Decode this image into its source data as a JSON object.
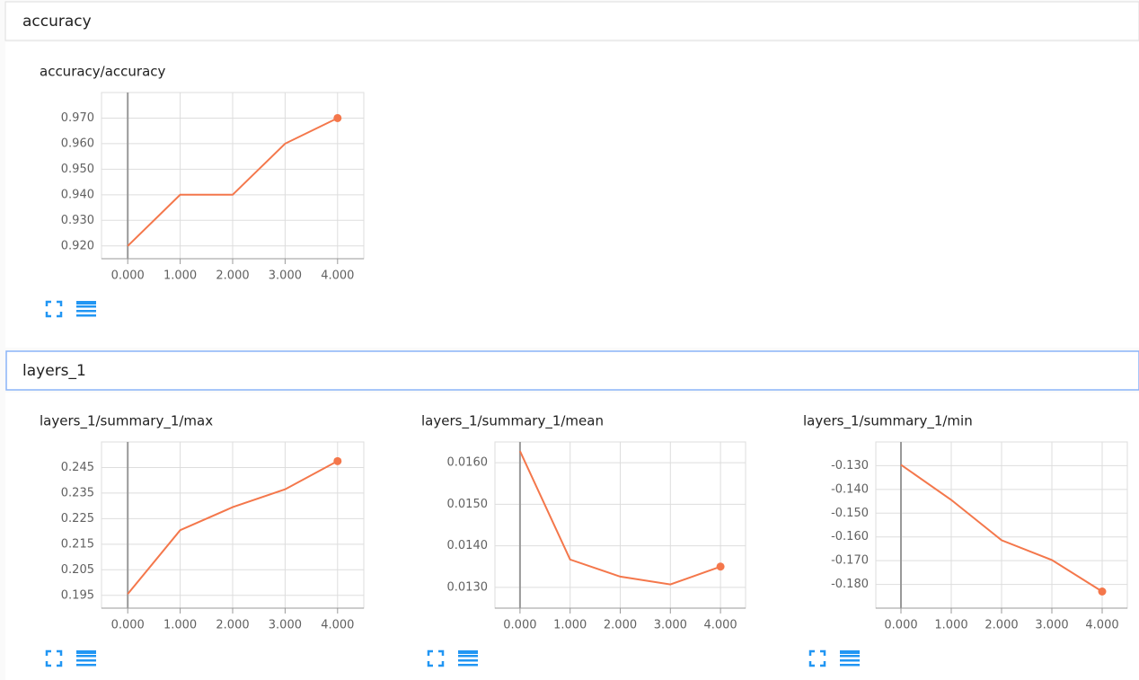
{
  "sections": [
    "accuracy",
    "layers_1"
  ],
  "chart_data": [
    {
      "type": "line",
      "title": "accuracy/accuracy",
      "x": [
        0,
        1,
        2,
        3,
        4
      ],
      "values": [
        0.92,
        0.94,
        0.94,
        0.96,
        0.97
      ],
      "color": "#f4774b",
      "xlim": [
        -0.5,
        4.5
      ],
      "ylim": [
        0.915,
        0.98
      ],
      "xticks": [
        {
          "value": 0,
          "label": "0.000"
        },
        {
          "value": 1,
          "label": "1.000"
        },
        {
          "value": 2,
          "label": "2.000"
        },
        {
          "value": 3,
          "label": "3.000"
        },
        {
          "value": 4,
          "label": "4.000"
        }
      ],
      "yticks": [
        {
          "value": 0.92,
          "label": "0.920"
        },
        {
          "value": 0.93,
          "label": "0.930"
        },
        {
          "value": 0.94,
          "label": "0.940"
        },
        {
          "value": 0.95,
          "label": "0.950"
        },
        {
          "value": 0.96,
          "label": "0.960"
        },
        {
          "value": 0.97,
          "label": "0.970"
        }
      ],
      "grid": true
    },
    {
      "type": "line",
      "title": "layers_1/summary_1/max",
      "x": [
        0,
        1,
        2,
        3,
        4
      ],
      "values": [
        0.1955,
        0.2205,
        0.2295,
        0.2365,
        0.2475
      ],
      "color": "#f4774b",
      "xlim": [
        -0.5,
        4.5
      ],
      "ylim": [
        0.19,
        0.255
      ],
      "xticks": [
        {
          "value": 0,
          "label": "0.000"
        },
        {
          "value": 1,
          "label": "1.000"
        },
        {
          "value": 2,
          "label": "2.000"
        },
        {
          "value": 3,
          "label": "3.000"
        },
        {
          "value": 4,
          "label": "4.000"
        }
      ],
      "yticks": [
        0.195,
        0.205,
        0.215,
        0.225,
        0.235,
        0.245
      ],
      "grid": true
    },
    {
      "type": "line",
      "title": "layers_1/summary_1/mean",
      "x": [
        0,
        1,
        2,
        3,
        4
      ],
      "values": [
        0.01628,
        0.01367,
        0.01326,
        0.01307,
        0.0135
      ],
      "color": "#f4774b",
      "xlim": [
        -0.5,
        4.5
      ],
      "ylim": [
        0.0125,
        0.0165
      ],
      "xticks": [
        {
          "value": 0,
          "label": "0.000"
        },
        {
          "value": 1,
          "label": "1.000"
        },
        {
          "value": 2,
          "label": "2.000"
        },
        {
          "value": 3,
          "label": "3.000"
        },
        {
          "value": 4,
          "label": "4.000"
        }
      ],
      "yticks": [
        {
          "value": 0.013,
          "label": "0.0130"
        },
        {
          "value": 0.014,
          "label": "0.0140"
        },
        {
          "value": 0.015,
          "label": "0.0150"
        },
        {
          "value": 0.016,
          "label": "0.0160"
        }
      ],
      "grid": true
    },
    {
      "type": "line",
      "title": "layers_1/summary_1/min",
      "x": [
        0,
        1,
        2,
        3,
        4
      ],
      "values": [
        -0.1296,
        -0.1444,
        -0.1614,
        -0.1697,
        -0.183
      ],
      "color": "#f4774b",
      "xlim": [
        -0.5,
        4.5
      ],
      "ylim": [
        -0.19,
        -0.12
      ],
      "xticks": [
        {
          "value": 0,
          "label": "0.000"
        },
        {
          "value": 1,
          "label": "1.000"
        },
        {
          "value": 2,
          "label": "2.000"
        },
        {
          "value": 3,
          "label": "3.000"
        },
        {
          "value": 4,
          "label": "4.000"
        }
      ],
      "yticks": [
        {
          "value": -0.18,
          "label": "-0.180"
        },
        {
          "value": -0.17,
          "label": "-0.170"
        },
        {
          "value": -0.16,
          "label": "-0.160"
        },
        {
          "value": -0.15,
          "label": "-0.150"
        },
        {
          "value": -0.14,
          "label": "-0.140"
        },
        {
          "value": -0.13,
          "label": "-0.130"
        }
      ],
      "grid": true
    }
  ]
}
